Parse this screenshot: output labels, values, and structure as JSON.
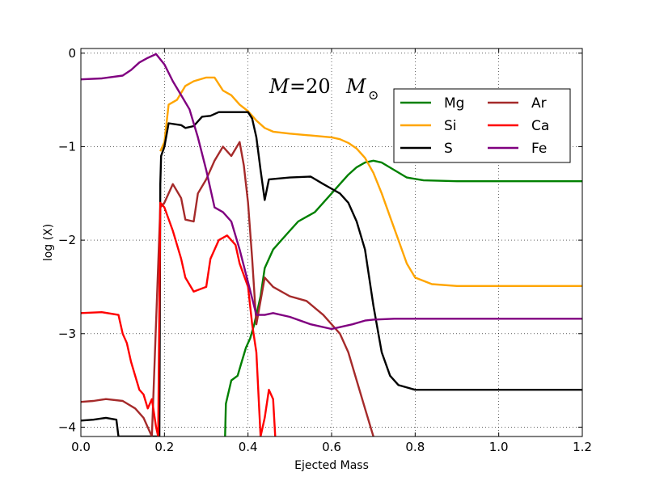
{
  "chart_data": {
    "type": "line",
    "title": "",
    "annotation": {
      "symbol": "M",
      "equals": "=20",
      "unit_symbol": "M",
      "unit_sub": "⊙"
    },
    "xlabel": "Ejected Mass",
    "ylabel": "log (X)",
    "xlim": [
      0.0,
      1.2
    ],
    "ylim": [
      -4.1,
      0.05
    ],
    "xticks": [
      0.0,
      0.2,
      0.4,
      0.6,
      0.8,
      1.0,
      1.2
    ],
    "yticks": [
      0,
      -1,
      -2,
      -3,
      -4
    ],
    "xtick_labels": [
      "0.0",
      "0.2",
      "0.4",
      "0.6",
      "0.8",
      "1.0",
      "1.2"
    ],
    "ytick_labels": [
      "0",
      "−1",
      "−2",
      "−3",
      "−4"
    ],
    "grid": true,
    "legend_position": "top-right",
    "series": [
      {
        "name": "Mg",
        "color": "#008000",
        "points": [
          [
            0.345,
            -4.1
          ],
          [
            0.347,
            -3.75
          ],
          [
            0.36,
            -3.5
          ],
          [
            0.375,
            -3.45
          ],
          [
            0.385,
            -3.3
          ],
          [
            0.395,
            -3.15
          ],
          [
            0.405,
            -3.05
          ],
          [
            0.415,
            -2.9
          ],
          [
            0.43,
            -2.6
          ],
          [
            0.44,
            -2.3
          ],
          [
            0.46,
            -2.1
          ],
          [
            0.48,
            -2.0
          ],
          [
            0.5,
            -1.9
          ],
          [
            0.52,
            -1.8
          ],
          [
            0.54,
            -1.75
          ],
          [
            0.56,
            -1.7
          ],
          [
            0.58,
            -1.6
          ],
          [
            0.6,
            -1.5
          ],
          [
            0.62,
            -1.4
          ],
          [
            0.64,
            -1.3
          ],
          [
            0.66,
            -1.22
          ],
          [
            0.68,
            -1.17
          ],
          [
            0.7,
            -1.15
          ],
          [
            0.72,
            -1.17
          ],
          [
            0.75,
            -1.25
          ],
          [
            0.78,
            -1.33
          ],
          [
            0.82,
            -1.36
          ],
          [
            0.9,
            -1.37
          ],
          [
            1.2,
            -1.37
          ]
        ]
      },
      {
        "name": "Si",
        "color": "#ffa500",
        "points": [
          [
            0.19,
            -1.05
          ],
          [
            0.2,
            -0.95
          ],
          [
            0.21,
            -0.55
          ],
          [
            0.23,
            -0.5
          ],
          [
            0.25,
            -0.35
          ],
          [
            0.27,
            -0.3
          ],
          [
            0.3,
            -0.26
          ],
          [
            0.32,
            -0.26
          ],
          [
            0.34,
            -0.4
          ],
          [
            0.36,
            -0.45
          ],
          [
            0.38,
            -0.55
          ],
          [
            0.4,
            -0.62
          ],
          [
            0.42,
            -0.72
          ],
          [
            0.44,
            -0.8
          ],
          [
            0.46,
            -0.84
          ],
          [
            0.5,
            -0.86
          ],
          [
            0.55,
            -0.88
          ],
          [
            0.6,
            -0.9
          ],
          [
            0.62,
            -0.92
          ],
          [
            0.64,
            -0.96
          ],
          [
            0.66,
            -1.02
          ],
          [
            0.68,
            -1.12
          ],
          [
            0.7,
            -1.28
          ],
          [
            0.72,
            -1.5
          ],
          [
            0.74,
            -1.75
          ],
          [
            0.76,
            -2.0
          ],
          [
            0.78,
            -2.25
          ],
          [
            0.8,
            -2.4
          ],
          [
            0.84,
            -2.47
          ],
          [
            0.9,
            -2.49
          ],
          [
            1.2,
            -2.49
          ]
        ]
      },
      {
        "name": "S",
        "color": "#000000",
        "points": [
          [
            0.0,
            -3.93
          ],
          [
            0.03,
            -3.92
          ],
          [
            0.06,
            -3.9
          ],
          [
            0.085,
            -3.92
          ],
          [
            0.09,
            -4.1
          ],
          [
            0.188,
            -4.1
          ],
          [
            0.19,
            -1.4
          ],
          [
            0.192,
            -1.1
          ],
          [
            0.2,
            -1.0
          ],
          [
            0.21,
            -0.75
          ],
          [
            0.24,
            -0.77
          ],
          [
            0.25,
            -0.8
          ],
          [
            0.27,
            -0.78
          ],
          [
            0.29,
            -0.68
          ],
          [
            0.31,
            -0.67
          ],
          [
            0.33,
            -0.63
          ],
          [
            0.36,
            -0.63
          ],
          [
            0.4,
            -0.63
          ],
          [
            0.41,
            -0.7
          ],
          [
            0.42,
            -0.9
          ],
          [
            0.43,
            -1.25
          ],
          [
            0.44,
            -1.57
          ],
          [
            0.45,
            -1.35
          ],
          [
            0.5,
            -1.33
          ],
          [
            0.55,
            -1.32
          ],
          [
            0.58,
            -1.4
          ],
          [
            0.6,
            -1.45
          ],
          [
            0.62,
            -1.5
          ],
          [
            0.64,
            -1.6
          ],
          [
            0.66,
            -1.8
          ],
          [
            0.68,
            -2.1
          ],
          [
            0.7,
            -2.7
          ],
          [
            0.72,
            -3.2
          ],
          [
            0.74,
            -3.45
          ],
          [
            0.76,
            -3.55
          ],
          [
            0.8,
            -3.6
          ],
          [
            1.2,
            -3.6
          ]
        ]
      },
      {
        "name": "Ar",
        "color": "#a52a2a",
        "points": [
          [
            0.0,
            -3.73
          ],
          [
            0.03,
            -3.72
          ],
          [
            0.06,
            -3.7
          ],
          [
            0.1,
            -3.72
          ],
          [
            0.13,
            -3.8
          ],
          [
            0.15,
            -3.9
          ],
          [
            0.17,
            -4.1
          ],
          [
            0.19,
            -1.65
          ],
          [
            0.2,
            -1.6
          ],
          [
            0.22,
            -1.4
          ],
          [
            0.24,
            -1.55
          ],
          [
            0.25,
            -1.78
          ],
          [
            0.27,
            -1.8
          ],
          [
            0.28,
            -1.5
          ],
          [
            0.3,
            -1.35
          ],
          [
            0.32,
            -1.15
          ],
          [
            0.34,
            -1.0
          ],
          [
            0.36,
            -1.1
          ],
          [
            0.38,
            -0.95
          ],
          [
            0.39,
            -1.2
          ],
          [
            0.4,
            -1.6
          ],
          [
            0.41,
            -2.2
          ],
          [
            0.42,
            -2.9
          ],
          [
            0.44,
            -2.4
          ],
          [
            0.46,
            -2.5
          ],
          [
            0.5,
            -2.6
          ],
          [
            0.54,
            -2.65
          ],
          [
            0.58,
            -2.8
          ],
          [
            0.62,
            -3.0
          ],
          [
            0.64,
            -3.2
          ],
          [
            0.66,
            -3.5
          ],
          [
            0.68,
            -3.8
          ],
          [
            0.7,
            -4.1
          ]
        ]
      },
      {
        "name": "Ca",
        "color": "#ff0000",
        "points": [
          [
            0.0,
            -2.78
          ],
          [
            0.05,
            -2.77
          ],
          [
            0.09,
            -2.8
          ],
          [
            0.1,
            -3.0
          ],
          [
            0.11,
            -3.1
          ],
          [
            0.12,
            -3.3
          ],
          [
            0.14,
            -3.6
          ],
          [
            0.15,
            -3.65
          ],
          [
            0.16,
            -3.8
          ],
          [
            0.17,
            -3.7
          ],
          [
            0.18,
            -4.0
          ],
          [
            0.185,
            -4.1
          ],
          [
            0.19,
            -1.6
          ],
          [
            0.2,
            -1.65
          ],
          [
            0.22,
            -1.9
          ],
          [
            0.24,
            -2.2
          ],
          [
            0.25,
            -2.4
          ],
          [
            0.27,
            -2.55
          ],
          [
            0.3,
            -2.5
          ],
          [
            0.31,
            -2.2
          ],
          [
            0.33,
            -2.0
          ],
          [
            0.35,
            -1.95
          ],
          [
            0.37,
            -2.05
          ],
          [
            0.38,
            -2.25
          ],
          [
            0.4,
            -2.5
          ],
          [
            0.41,
            -2.9
          ],
          [
            0.42,
            -3.2
          ],
          [
            0.43,
            -4.1
          ],
          [
            0.44,
            -3.9
          ],
          [
            0.45,
            -3.6
          ],
          [
            0.46,
            -3.7
          ],
          [
            0.465,
            -4.1
          ]
        ]
      },
      {
        "name": "Fe",
        "color": "#800080",
        "points": [
          [
            0.0,
            -0.28
          ],
          [
            0.05,
            -0.27
          ],
          [
            0.1,
            -0.24
          ],
          [
            0.12,
            -0.18
          ],
          [
            0.14,
            -0.1
          ],
          [
            0.16,
            -0.05
          ],
          [
            0.18,
            -0.01
          ],
          [
            0.2,
            -0.12
          ],
          [
            0.22,
            -0.3
          ],
          [
            0.24,
            -0.45
          ],
          [
            0.26,
            -0.6
          ],
          [
            0.28,
            -0.9
          ],
          [
            0.3,
            -1.25
          ],
          [
            0.32,
            -1.65
          ],
          [
            0.34,
            -1.7
          ],
          [
            0.36,
            -1.8
          ],
          [
            0.38,
            -2.1
          ],
          [
            0.4,
            -2.45
          ],
          [
            0.42,
            -2.8
          ],
          [
            0.44,
            -2.8
          ],
          [
            0.46,
            -2.78
          ],
          [
            0.5,
            -2.82
          ],
          [
            0.55,
            -2.9
          ],
          [
            0.6,
            -2.95
          ],
          [
            0.62,
            -2.93
          ],
          [
            0.65,
            -2.9
          ],
          [
            0.68,
            -2.86
          ],
          [
            0.7,
            -2.85
          ],
          [
            0.75,
            -2.84
          ],
          [
            0.8,
            -2.84
          ],
          [
            1.2,
            -2.84
          ]
        ]
      }
    ]
  }
}
